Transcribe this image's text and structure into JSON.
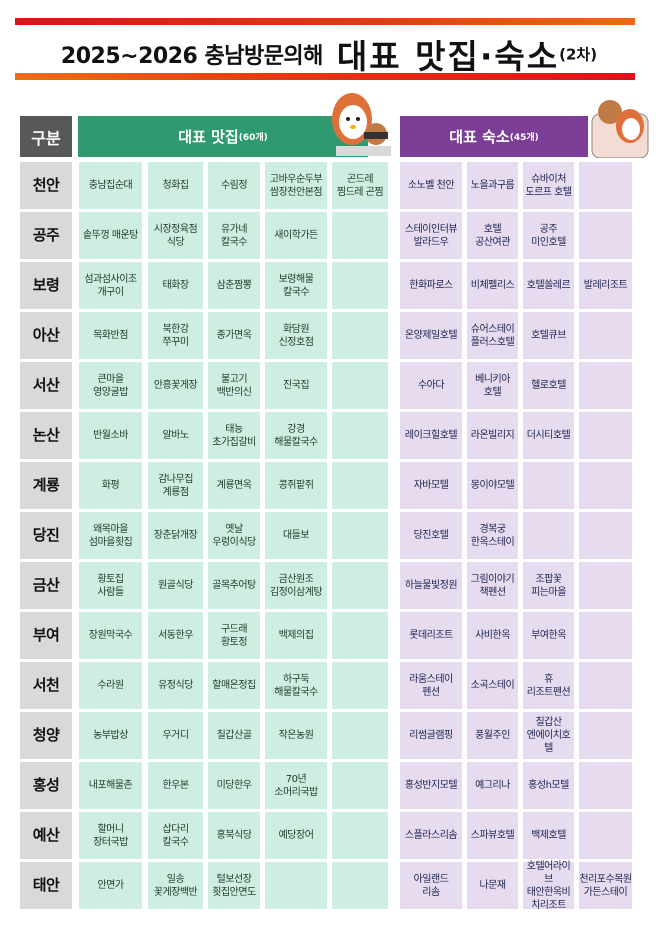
{
  "title": {
    "prefix": "2025~2026 충남방문의해",
    "main": "대표 맛집·숙소",
    "suffix": "(2차)"
  },
  "header": {
    "category": "구분",
    "restaurants": "대표 맛집",
    "restaurants_count": "(60개)",
    "lodgings": "대표 숙소",
    "lodgings_count": "(45개)"
  },
  "colors": {
    "restaurant_header": "#2f9a6f",
    "lodging_header": "#7b3d96",
    "restaurant_cell": "#cdeee0",
    "lodging_cell": "#e7dcef",
    "category_header": "#58585a"
  },
  "rows": [
    {
      "region": "천안",
      "restaurants": [
        "충남집순대",
        "청화집",
        "수림정",
        "고바우순두부\n쌈장천안본점",
        "곤드레\n찜드레 곤찜"
      ],
      "lodgings": [
        "소노벨 천안",
        "노을과구름",
        "슈바이처\n도르프 호텔",
        ""
      ]
    },
    {
      "region": "공주",
      "restaurants": [
        "솥뚜껑 매운탕",
        "시장정육점\n식당",
        "유가네\n칼국수",
        "새이학가든",
        ""
      ],
      "lodgings": [
        "스테이인터뷰\n발라드우",
        "호텔\n공산여관",
        "공주\n미인호텔",
        ""
      ]
    },
    {
      "region": "보령",
      "restaurants": [
        "섬과섬사이조\n개구이",
        "태화장",
        "삼춘짬뽕",
        "보령해물\n칼국수",
        ""
      ],
      "lodgings": [
        "한화파로스",
        "비체펠리스",
        "호텔쏠레르",
        "발레리조트"
      ]
    },
    {
      "region": "아산",
      "restaurants": [
        "목화반점",
        "북한강\n쭈꾸미",
        "종가면옥",
        "화담원\n신정호점",
        ""
      ],
      "lodgings": [
        "온양제일호텔",
        "슈어스테이\n플러스호텔",
        "호텔큐브",
        ""
      ]
    },
    {
      "region": "서산",
      "restaurants": [
        "큰마을\n영양굴밥",
        "안흥꽃게장",
        "불고기\n백반의신",
        "진국집",
        ""
      ],
      "lodgings": [
        "수아다",
        "베니키아\n호텔",
        "헬로호텔",
        ""
      ]
    },
    {
      "region": "논산",
      "restaurants": [
        "반월소바",
        "알바노",
        "태능\n초가집갈비",
        "강경\n해물칼국수",
        ""
      ],
      "lodgings": [
        "레이크힐호텔",
        "라온빌리지",
        "더시티호텔",
        ""
      ]
    },
    {
      "region": "계룡",
      "restaurants": [
        "화평",
        "감나무집\n계룡점",
        "계룡면옥",
        "콩쥐팥쥐",
        ""
      ],
      "lodgings": [
        "자바모텔",
        "몽이야모텔",
        "",
        ""
      ]
    },
    {
      "region": "당진",
      "restaurants": [
        "왜목마을\n섬마을횟집",
        "장춘닭개장",
        "옛날\n우렁이식당",
        "대들보",
        ""
      ],
      "lodgings": [
        "당진호텔",
        "경복궁\n한옥스테이",
        "",
        ""
      ]
    },
    {
      "region": "금산",
      "restaurants": [
        "황토집\n사람들",
        "원골식당",
        "골목추어탕",
        "금산원조\n김정이삼계탕",
        ""
      ],
      "lodgings": [
        "하늘물빛정원",
        "그림이야기\n책펜션",
        "조팝꽃\n피는마을",
        ""
      ]
    },
    {
      "region": "부여",
      "restaurants": [
        "장원막국수",
        "서동한우",
        "구드래\n황토정",
        "백제의집",
        ""
      ],
      "lodgings": [
        "롯데리조트",
        "사비한옥",
        "부여한옥",
        ""
      ]
    },
    {
      "region": "서천",
      "restaurants": [
        "수라원",
        "유정식당",
        "할매온정집",
        "하구둑\n해물칼국수",
        ""
      ],
      "lodgings": [
        "라움스테이\n펜션",
        "소곡스테이",
        "휴\n리조트펜션",
        ""
      ]
    },
    {
      "region": "청양",
      "restaurants": [
        "농부밥상",
        "우거디",
        "칠갑산골",
        "작은농원",
        ""
      ],
      "lodgings": [
        "리썸글램핑",
        "풍월주인",
        "칠갑산\n엔에이치호텔",
        ""
      ]
    },
    {
      "region": "홍성",
      "restaurants": [
        "내포해물촌",
        "한우본",
        "미당한우",
        "70년\n소머리국밥",
        ""
      ],
      "lodgings": [
        "홍성반지모텔",
        "예그리나",
        "홍성h모텔",
        ""
      ]
    },
    {
      "region": "예산",
      "restaurants": [
        "할머니\n장터국밥",
        "삽다리\n칼국수",
        "홍북식당",
        "예당장어",
        ""
      ],
      "lodgings": [
        "스플라스리솜",
        "스파뷰호텔",
        "백제호텔",
        ""
      ]
    },
    {
      "region": "태안",
      "restaurants": [
        "안면가",
        "일송\n꽃게장백반",
        "털보선장\n횟집안면도",
        "",
        ""
      ],
      "lodgings": [
        "아일랜드\n리솜",
        "나문재",
        "호텔어라이브\n태안한옥비\n치리조트",
        "천리포수목원\n가든스테이"
      ]
    }
  ]
}
